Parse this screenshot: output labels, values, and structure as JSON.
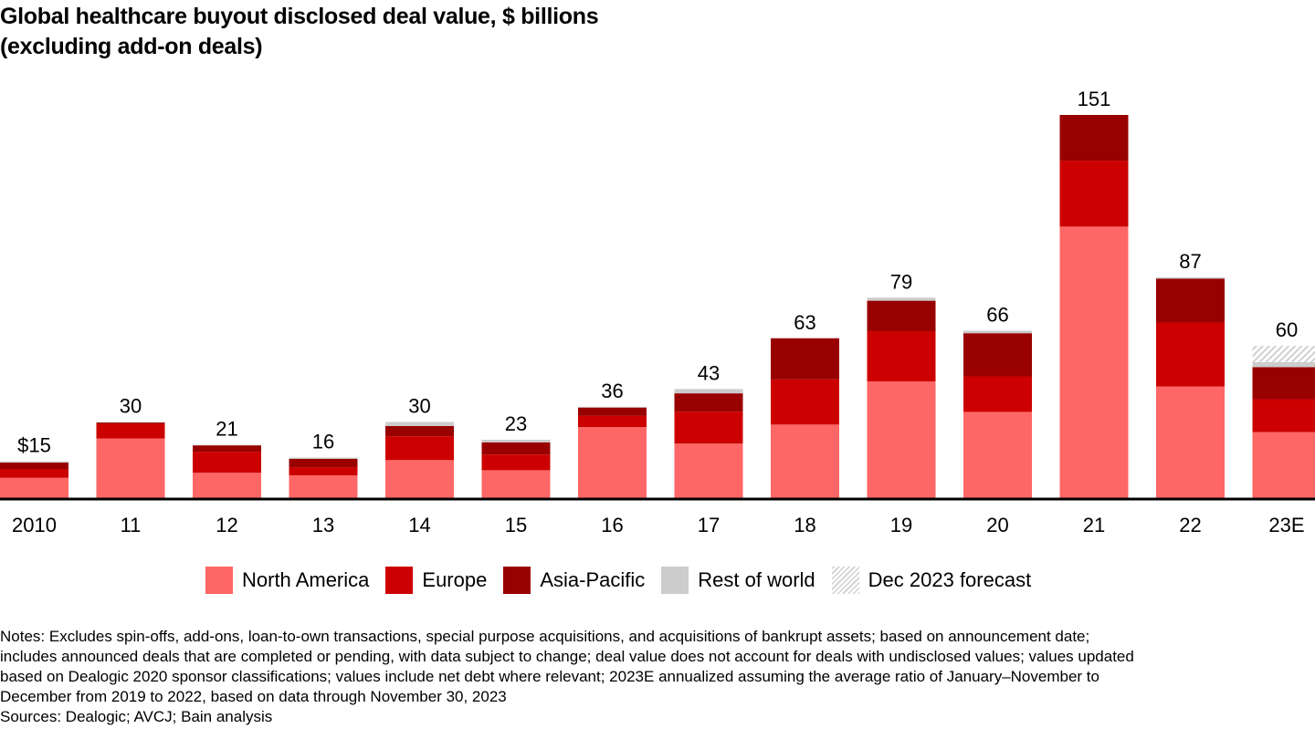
{
  "title": {
    "line1": "Global healthcare buyout disclosed deal value, $ billions",
    "line2": "(excluding add-on deals)"
  },
  "chart_data": {
    "type": "bar",
    "stacked": true,
    "title": "Global healthcare buyout disclosed deal value, $ billions (excluding add-on deals)",
    "xlabel": "",
    "ylabel": "",
    "ylim": [
      0,
      151
    ],
    "grid": false,
    "legend_position": "bottom",
    "categories": [
      "2010",
      "11",
      "12",
      "13",
      "14",
      "15",
      "16",
      "17",
      "18",
      "19",
      "20",
      "21",
      "22",
      "23E"
    ],
    "totals": [
      15,
      30,
      21,
      16,
      30,
      23,
      36,
      43,
      63,
      79,
      66,
      151,
      87,
      60
    ],
    "total_labels": [
      "$15",
      "30",
      "21",
      "16",
      "30",
      "23",
      "36",
      "43",
      "63",
      "79",
      "66",
      "151",
      "87",
      "60"
    ],
    "series": [
      {
        "name": "North America",
        "color": "#ff6666",
        "values": [
          8,
          23.5,
          10,
          9,
          15,
          11,
          28,
          21.5,
          29,
          46,
          34,
          107,
          44,
          26
        ]
      },
      {
        "name": "Europe",
        "color": "#cc0000",
        "values": [
          3.5,
          5.8,
          8.3,
          3.2,
          9.4,
          6.2,
          4.4,
          12.6,
          17.8,
          19.8,
          14,
          26,
          25.2,
          13
        ]
      },
      {
        "name": "Asia-Pacific",
        "color": "#990000",
        "values": [
          2.5,
          0.5,
          2.5,
          3.3,
          4,
          4.8,
          3.3,
          7.2,
          16.2,
          12,
          17,
          18,
          17.3,
          12.6
        ]
      },
      {
        "name": "Rest of world",
        "color": "#cccccc",
        "values": [
          0.5,
          0.2,
          0.2,
          0.5,
          1.6,
          1,
          0.3,
          1.7,
          0,
          1.2,
          1,
          0,
          0.5,
          2
        ]
      },
      {
        "name": "Dec 2023 forecast",
        "color": "#d0d0d0",
        "pattern": "hatched",
        "values": [
          0,
          0,
          0,
          0,
          0,
          0,
          0,
          0,
          0,
          0,
          0,
          0,
          0,
          6.4
        ]
      }
    ]
  },
  "legend": [
    {
      "label": "North America",
      "color": "#ff6666"
    },
    {
      "label": "Europe",
      "color": "#cc0000"
    },
    {
      "label": "Asia-Pacific",
      "color": "#990000"
    },
    {
      "label": "Rest of world",
      "color": "#cccccc"
    },
    {
      "label": "Dec 2023 forecast",
      "color": "#d0d0d0",
      "pattern": "hatched"
    }
  ],
  "notes": {
    "lines": [
      "Notes: Excludes spin-offs, add-ons, loan-to-own transactions, special purpose acquisitions, and acquisitions of bankrupt assets; based on announcement date;",
      "includes announced deals that are completed or pending, with data subject to change; deal value does not account for deals with undisclosed values; values updated",
      "based on Dealogic 2020 sponsor classifications; values include net debt where relevant; 2023E annualized assuming the average ratio of January–November to",
      "December from 2019 to 2022, based on data through November 30, 2023"
    ],
    "sources": "Sources: Dealogic; AVCJ; Bain analysis"
  }
}
